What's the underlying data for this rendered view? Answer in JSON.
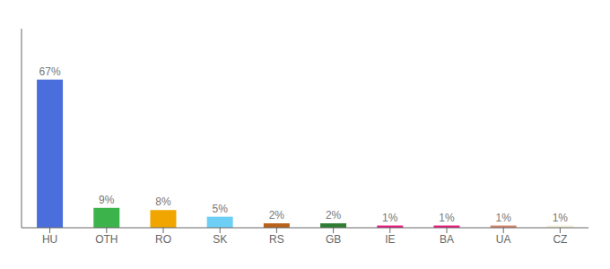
{
  "chart_data": {
    "type": "bar",
    "categories": [
      "HU",
      "OTH",
      "RO",
      "SK",
      "RS",
      "GB",
      "IE",
      "BA",
      "UA",
      "CZ"
    ],
    "values": [
      67,
      9,
      8,
      5,
      2,
      2,
      1,
      1,
      1,
      1
    ],
    "value_labels": [
      "67%",
      "9%",
      "8%",
      "5%",
      "2%",
      "2%",
      "1%",
      "1%",
      "1%",
      "1%"
    ],
    "colors": [
      "#4a6edb",
      "#3cb44b",
      "#f0a500",
      "#6ecff6",
      "#b8621b",
      "#2e7d32",
      "#e8197c",
      "#e8197c",
      "#d4826a",
      "#f5f0d8"
    ],
    "ylim": [
      0,
      90
    ],
    "data_labels": true,
    "tick_labels": "x",
    "grid": false
  }
}
